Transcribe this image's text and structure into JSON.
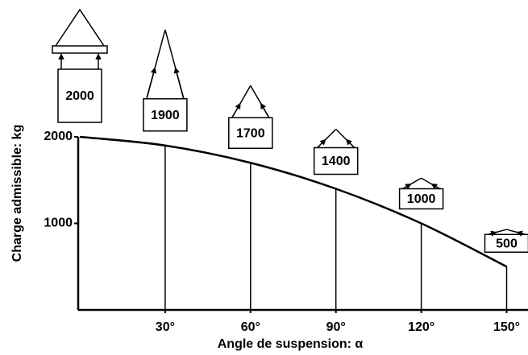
{
  "chart_data": {
    "type": "line",
    "x_label": "Angle de suspension: α",
    "y_label": "Charge admissible: kg",
    "x": [
      0,
      30,
      60,
      90,
      120,
      150
    ],
    "values": [
      2000,
      1900,
      1700,
      1400,
      1000,
      500
    ],
    "color": "#000000",
    "xlim": [
      0,
      157
    ],
    "xticks": [
      {
        "value": 30,
        "label": "30°"
      },
      {
        "value": 60,
        "label": "60°"
      },
      {
        "value": 90,
        "label": "90°"
      },
      {
        "value": 120,
        "label": "120°"
      },
      {
        "value": 150,
        "label": "150°"
      }
    ],
    "ylim": [
      0,
      2000
    ],
    "yticks": [
      1000,
      2000
    ]
  }
}
